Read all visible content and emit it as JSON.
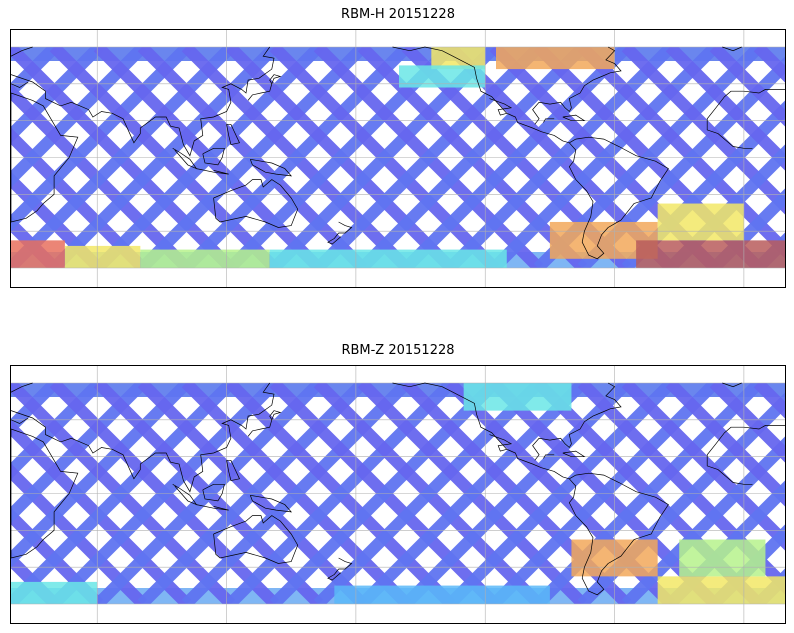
{
  "chart_data": [
    {
      "type": "heatmap",
      "title": "RBM-H 20151228",
      "description": "Global map of satellite ground tracks (swath lattice) colored by value; blue dominant, high values (red) at high southern latitudes and North Pacific / North Atlantic.",
      "xlim": [
        20,
        380
      ],
      "ylim": [
        -60,
        60
      ],
      "grid": true,
      "colormap": [
        "#6666ee",
        "#5c8cf5",
        "#5ab8f8",
        "#6ae6e6",
        "#b6f28c",
        "#f2e866",
        "#f2a85a",
        "#e8705e",
        "#b85c5c"
      ],
      "regions": [
        {
          "lon": [
            20,
            45
          ],
          "lat": [
            -60,
            -45
          ],
          "level": 0.9
        },
        {
          "lon": [
            45,
            80
          ],
          "lat": [
            -60,
            -48
          ],
          "level": 0.65
        },
        {
          "lon": [
            80,
            140
          ],
          "lat": [
            -60,
            -50
          ],
          "level": 0.5
        },
        {
          "lon": [
            140,
            250
          ],
          "lat": [
            -60,
            -50
          ],
          "level": 0.35
        },
        {
          "lon": [
            270,
            320
          ],
          "lat": [
            -55,
            -35
          ],
          "level": 0.8
        },
        {
          "lon": [
            310,
            380
          ],
          "lat": [
            -60,
            -45
          ],
          "level": 0.95
        },
        {
          "lon": [
            320,
            360
          ],
          "lat": [
            -45,
            -25
          ],
          "level": 0.6
        },
        {
          "lon": [
            215,
            240
          ],
          "lat": [
            48,
            60
          ],
          "level": 0.65
        },
        {
          "lon": [
            245,
            300
          ],
          "lat": [
            48,
            60
          ],
          "level": 0.8
        },
        {
          "lon": [
            200,
            240
          ],
          "lat": [
            38,
            50
          ],
          "level": 0.4
        }
      ]
    },
    {
      "type": "heatmap",
      "title": "RBM-Z 20151228",
      "description": "Global map of satellite ground tracks (swath lattice) colored by value; mostly blue with moderate values near South America and the Southern Ocean.",
      "xlim": [
        20,
        380
      ],
      "ylim": [
        -60,
        60
      ],
      "grid": true,
      "colormap": [
        "#6666ee",
        "#5c8cf5",
        "#5ab8f8",
        "#6ae6e6",
        "#b6f28c",
        "#f2e866",
        "#f2a85a",
        "#e8705e",
        "#b85c5c"
      ],
      "regions": [
        {
          "lon": [
            20,
            60
          ],
          "lat": [
            -60,
            -48
          ],
          "level": 0.4
        },
        {
          "lon": [
            170,
            270
          ],
          "lat": [
            -60,
            -50
          ],
          "level": 0.3
        },
        {
          "lon": [
            280,
            320
          ],
          "lat": [
            -45,
            -25
          ],
          "level": 0.75
        },
        {
          "lon": [
            320,
            380
          ],
          "lat": [
            -60,
            -45
          ],
          "level": 0.6
        },
        {
          "lon": [
            330,
            370
          ],
          "lat": [
            -45,
            -25
          ],
          "level": 0.45
        },
        {
          "lon": [
            230,
            280
          ],
          "lat": [
            45,
            60
          ],
          "level": 0.35
        }
      ]
    }
  ]
}
